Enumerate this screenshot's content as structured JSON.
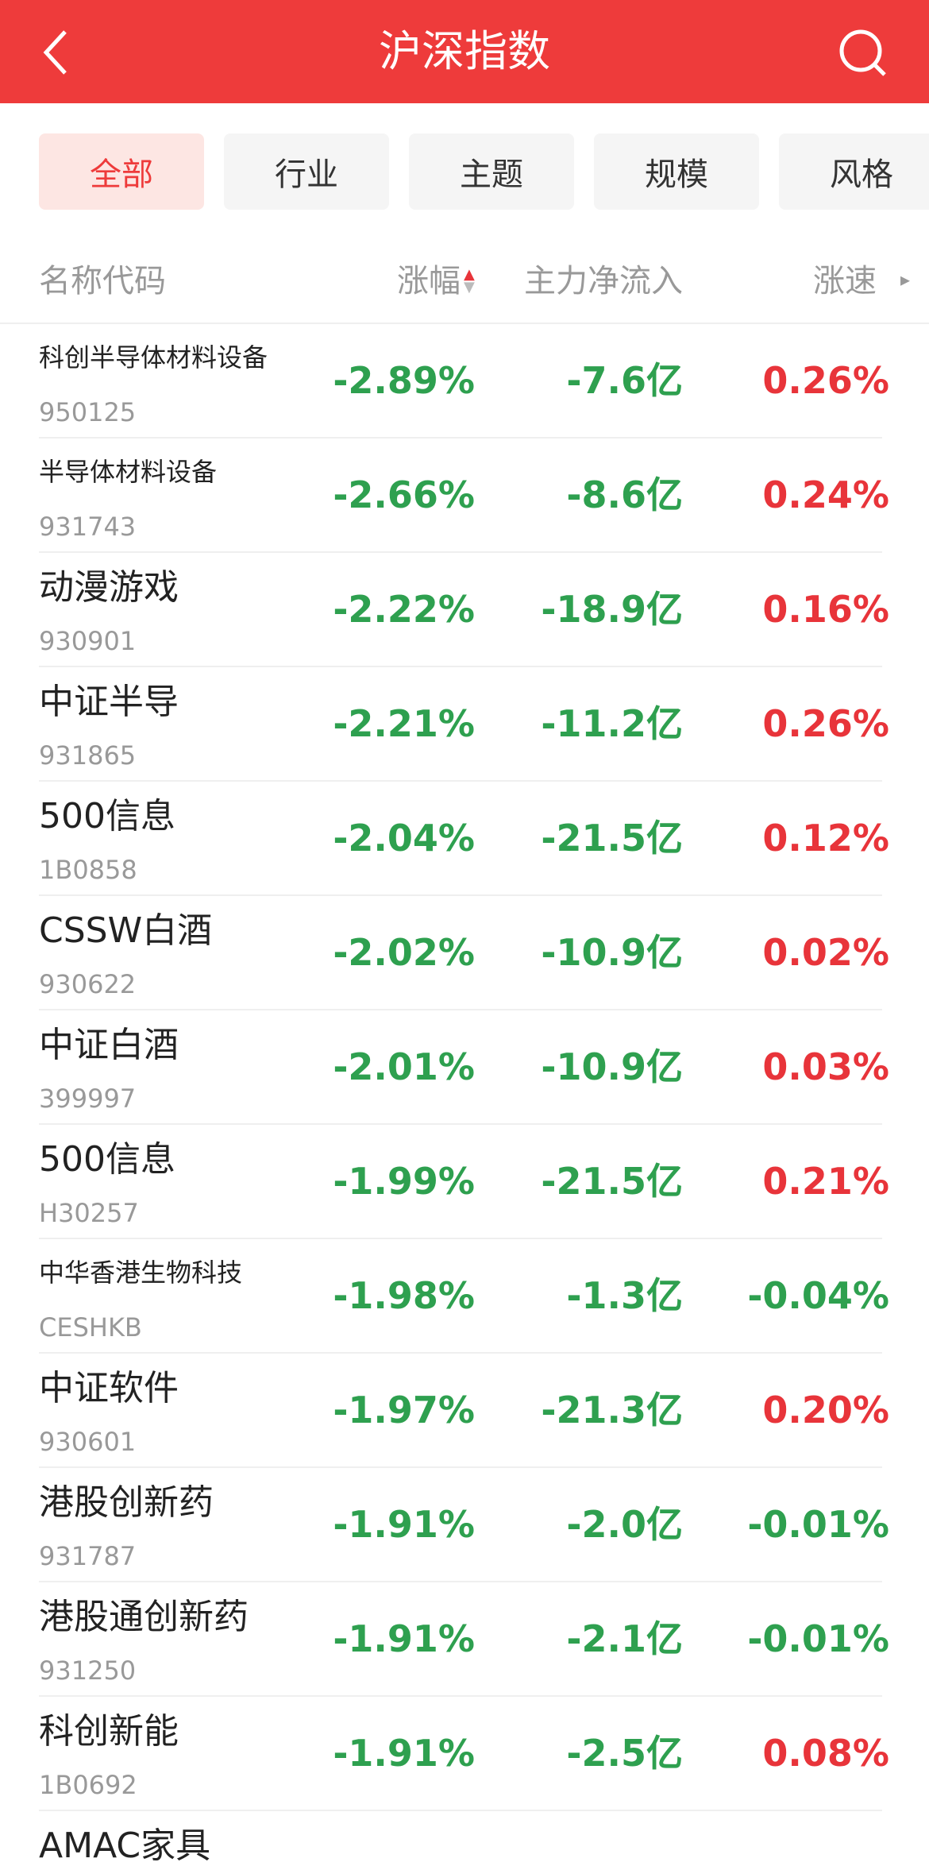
{
  "header": {
    "title": "沪深指数"
  },
  "tabs": [
    "全部",
    "行业",
    "主题",
    "规模",
    "风格"
  ],
  "columns": [
    "名称代码",
    "涨幅",
    "主力净流入",
    "涨速"
  ],
  "rows": [
    {
      "name": "科创半导体材料设备",
      "code": "950125",
      "change": "-2.89%",
      "flow": "-7.6亿",
      "speed": "0.26%"
    },
    {
      "name": "半导体材料设备",
      "code": "931743",
      "change": "-2.66%",
      "flow": "-8.6亿",
      "speed": "0.24%"
    },
    {
      "name": "动漫游戏",
      "code": "930901",
      "change": "-2.22%",
      "flow": "-18.9亿",
      "speed": "0.16%"
    },
    {
      "name": "中证半导",
      "code": "931865",
      "change": "-2.21%",
      "flow": "-11.2亿",
      "speed": "0.26%"
    },
    {
      "name": "500信息",
      "code": "1B0858",
      "change": "-2.04%",
      "flow": "-21.5亿",
      "speed": "0.12%"
    },
    {
      "name": "CSSW白酒",
      "code": "930622",
      "change": "-2.02%",
      "flow": "-10.9亿",
      "speed": "0.02%"
    },
    {
      "name": "中证白酒",
      "code": "399997",
      "change": "-2.01%",
      "flow": "-10.9亿",
      "speed": "0.03%"
    },
    {
      "name": "500信息",
      "code": "H30257",
      "change": "-1.99%",
      "flow": "-21.5亿",
      "speed": "0.21%"
    },
    {
      "name": "中华香港生物科技",
      "code": "CESHKB",
      "change": "-1.98%",
      "flow": "-1.3亿",
      "speed": "-0.04%"
    },
    {
      "name": "中证软件",
      "code": "930601",
      "change": "-1.97%",
      "flow": "-21.3亿",
      "speed": "0.20%"
    },
    {
      "name": "港股创新药",
      "code": "931787",
      "change": "-1.91%",
      "flow": "-2.0亿",
      "speed": "-0.01%"
    },
    {
      "name": "港股通创新药",
      "code": "931250",
      "change": "-1.91%",
      "flow": "-2.1亿",
      "speed": "-0.01%"
    },
    {
      "name": "科创新能",
      "code": "1B0692",
      "change": "-1.91%",
      "flow": "-2.5亿",
      "speed": "0.08%"
    },
    {
      "name": "AMAC家具"
    }
  ]
}
